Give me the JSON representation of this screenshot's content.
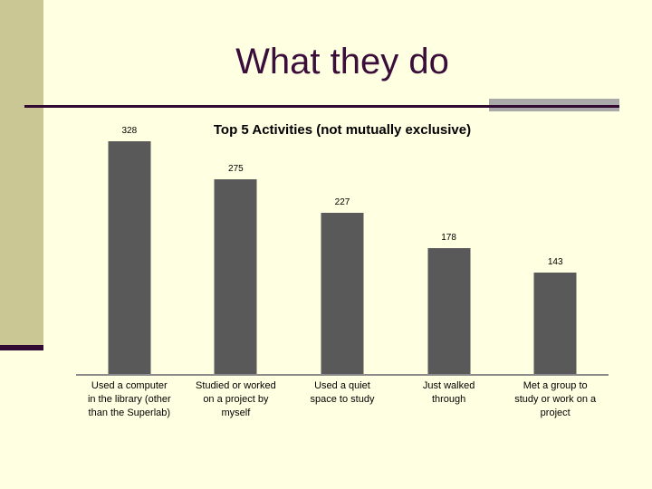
{
  "slide": {
    "title": "What they do"
  },
  "chart_data": {
    "type": "bar",
    "title": "Top 5 Activities (not mutually exclusive)",
    "categories": [
      "Used a computer\nin the library (other\nthan the Superlab)",
      "Studied or worked\non a project by\nmyself",
      "Used a quiet\nspace to study",
      "Just walked\nthrough",
      "Met a group to\nstudy or work on a\nproject"
    ],
    "values": [
      328,
      275,
      227,
      178,
      143
    ],
    "xlabel": "",
    "ylabel": "",
    "ylim": [
      0,
      328
    ],
    "grid": false,
    "legend": false,
    "data_labels": true,
    "bar_color": "#595959"
  },
  "colors": {
    "background": "#FFFFE1",
    "sidebar": "#CBC795",
    "accent-purple": "#330A33",
    "title-text": "#3A0D3A",
    "accent-gray": "#A9A9A9",
    "bar": "#595959",
    "axis": "#8C8C8C",
    "label-text": "#000000"
  }
}
